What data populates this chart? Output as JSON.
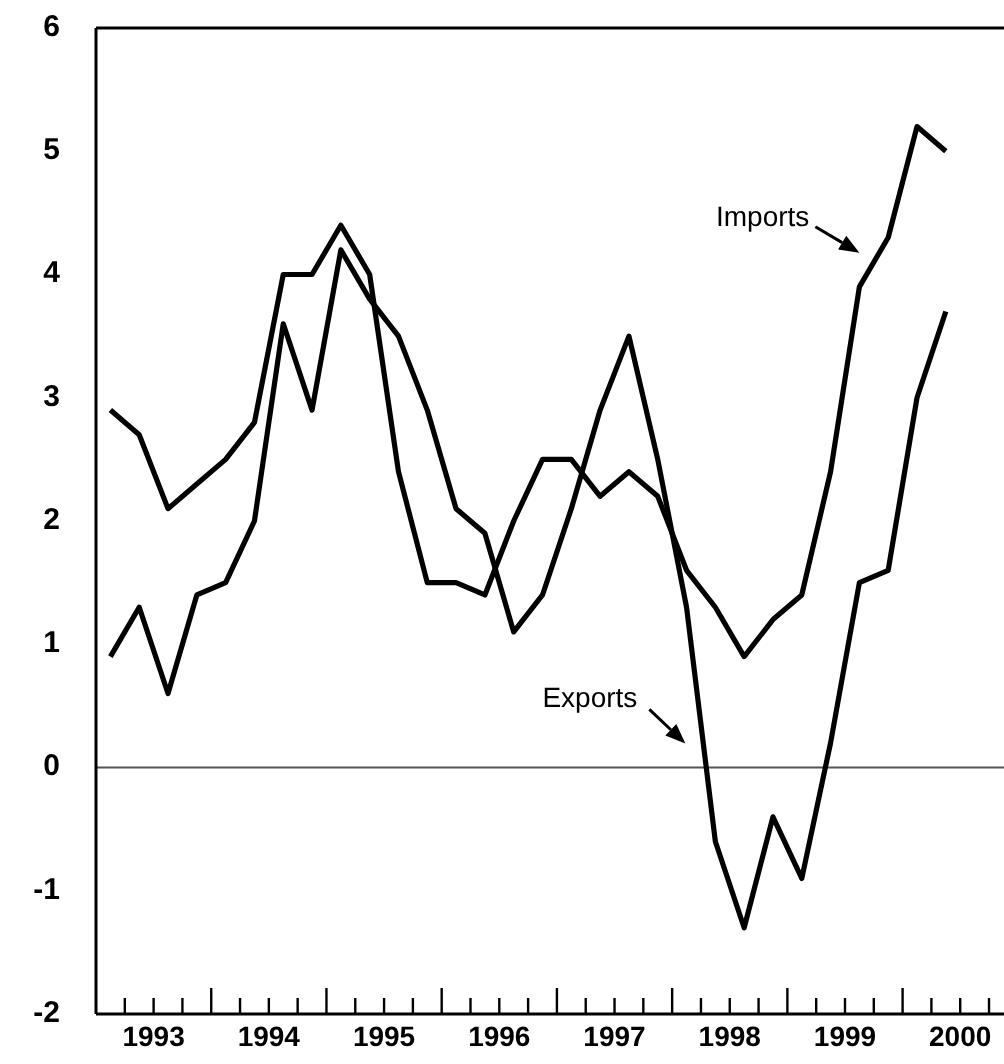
{
  "chart_data": {
    "type": "line",
    "xlim": [
      1993,
      2000.88
    ],
    "ylim": [
      -2,
      6
    ],
    "yticks": [
      -2,
      -1,
      0,
      1,
      2,
      3,
      4,
      5,
      6
    ],
    "xticks": [
      {
        "value": 1993.25,
        "label": null
      },
      {
        "value": 1993.5,
        "label": "1993"
      },
      {
        "value": 1993.75,
        "label": null
      },
      {
        "value": 1994,
        "label": null
      },
      {
        "value": 1994.25,
        "label": null
      },
      {
        "value": 1994.5,
        "label": "1994"
      },
      {
        "value": 1994.75,
        "label": null
      },
      {
        "value": 1995,
        "label": null
      },
      {
        "value": 1995.25,
        "label": null
      },
      {
        "value": 1995.5,
        "label": "1995"
      },
      {
        "value": 1995.75,
        "label": null
      },
      {
        "value": 1996,
        "label": null
      },
      {
        "value": 1996.25,
        "label": null
      },
      {
        "value": 1996.5,
        "label": "1996"
      },
      {
        "value": 1996.75,
        "label": null
      },
      {
        "value": 1997,
        "label": null
      },
      {
        "value": 1997.25,
        "label": null
      },
      {
        "value": 1997.5,
        "label": "1997"
      },
      {
        "value": 1997.75,
        "label": null
      },
      {
        "value": 1998,
        "label": null
      },
      {
        "value": 1998.25,
        "label": null
      },
      {
        "value": 1998.5,
        "label": "1998"
      },
      {
        "value": 1998.75,
        "label": null
      },
      {
        "value": 1999,
        "label": null
      },
      {
        "value": 1999.25,
        "label": null
      },
      {
        "value": 1999.5,
        "label": "1999"
      },
      {
        "value": 1999.75,
        "label": null
      },
      {
        "value": 2000,
        "label": null
      },
      {
        "value": 2000.25,
        "label": null
      },
      {
        "value": 2000.5,
        "label": "2000"
      },
      {
        "value": 2000.75,
        "label": null
      }
    ],
    "x": [
      1993.125,
      1993.375,
      1993.625,
      1993.875,
      1994.125,
      1994.375,
      1994.625,
      1994.875,
      1995.125,
      1995.375,
      1995.625,
      1995.875,
      1996.125,
      1996.375,
      1996.625,
      1996.875,
      1997.125,
      1997.375,
      1997.625,
      1997.875,
      1998.125,
      1998.375,
      1998.625,
      1998.875,
      1999.125,
      1999.375,
      1999.625,
      1999.875,
      2000.125,
      2000.375
    ],
    "series": [
      {
        "name": "Imports",
        "color": "#000000",
        "values": [
          2.9,
          2.7,
          2.1,
          2.3,
          2.5,
          2.8,
          4.0,
          4.0,
          4.4,
          4.0,
          2.4,
          1.5,
          1.5,
          1.4,
          2.0,
          2.5,
          2.5,
          2.2,
          2.4,
          2.2,
          1.6,
          1.3,
          0.9,
          1.2,
          1.4,
          2.4,
          3.9,
          4.3,
          5.2,
          5.0
        ]
      },
      {
        "name": "Exports",
        "color": "#000000",
        "values": [
          0.9,
          1.3,
          0.6,
          1.4,
          1.5,
          2.0,
          3.6,
          2.9,
          4.2,
          3.8,
          3.5,
          2.9,
          2.1,
          1.9,
          1.1,
          1.4,
          2.1,
          2.9,
          3.5,
          2.5,
          1.3,
          -0.6,
          -1.3,
          -0.4,
          -0.9,
          0.2,
          1.5,
          1.6,
          3.0,
          3.7
        ]
      }
    ],
    "ref_lines": [
      {
        "axis": "y",
        "value": 0,
        "color": "#555555"
      }
    ],
    "grid": false
  }
}
